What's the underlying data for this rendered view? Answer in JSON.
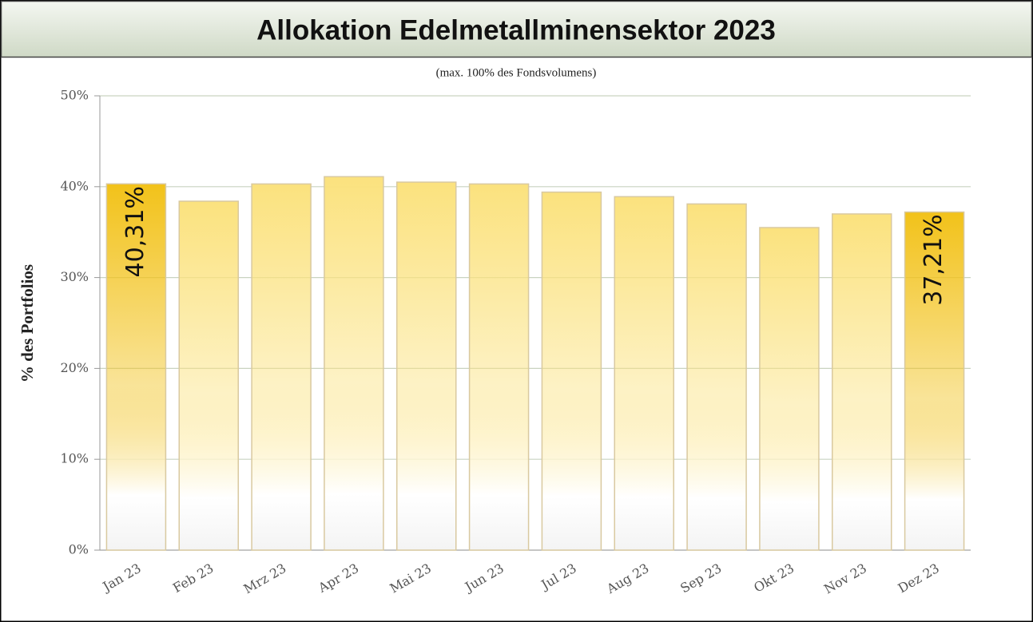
{
  "chart_data": {
    "type": "bar",
    "title": "Allokation Edelmetallminensektor 2023",
    "subtitle": "(max. 100% des Fondsvolumens)",
    "y_label": "% des Portfolios",
    "categories": [
      "Jan 23",
      "Feb 23",
      "Mrz 23",
      "Apr 23",
      "Mai 23",
      "Jun 23",
      "Jul 23",
      "Aug 23",
      "Sep 23",
      "Okt 23",
      "Nov 23",
      "Dez 23"
    ],
    "values": [
      40.31,
      38.4,
      40.3,
      41.1,
      40.5,
      40.3,
      39.4,
      38.9,
      38.1,
      35.5,
      37.0,
      37.21
    ],
    "value_labels": [
      "40,31%",
      null,
      null,
      null,
      null,
      null,
      null,
      null,
      null,
      null,
      null,
      "37,21%"
    ],
    "colors": [
      "#f2c21a",
      "#fbe27e",
      "#fbe27e",
      "#fbe27e",
      "#fbe27e",
      "#fbe27e",
      "#fbe27e",
      "#fbe27e",
      "#fbe27e",
      "#fbe27e",
      "#fbe27e",
      "#f2c21a"
    ],
    "ylim": [
      0,
      50
    ],
    "yticks": [
      {
        "value": 0,
        "label": "0%"
      },
      {
        "value": 10,
        "label": "10%"
      },
      {
        "value": 20,
        "label": "20%"
      },
      {
        "value": 30,
        "label": "30%"
      },
      {
        "value": 40,
        "label": "40%"
      },
      {
        "value": 50,
        "label": "50%"
      }
    ],
    "grid": true
  }
}
